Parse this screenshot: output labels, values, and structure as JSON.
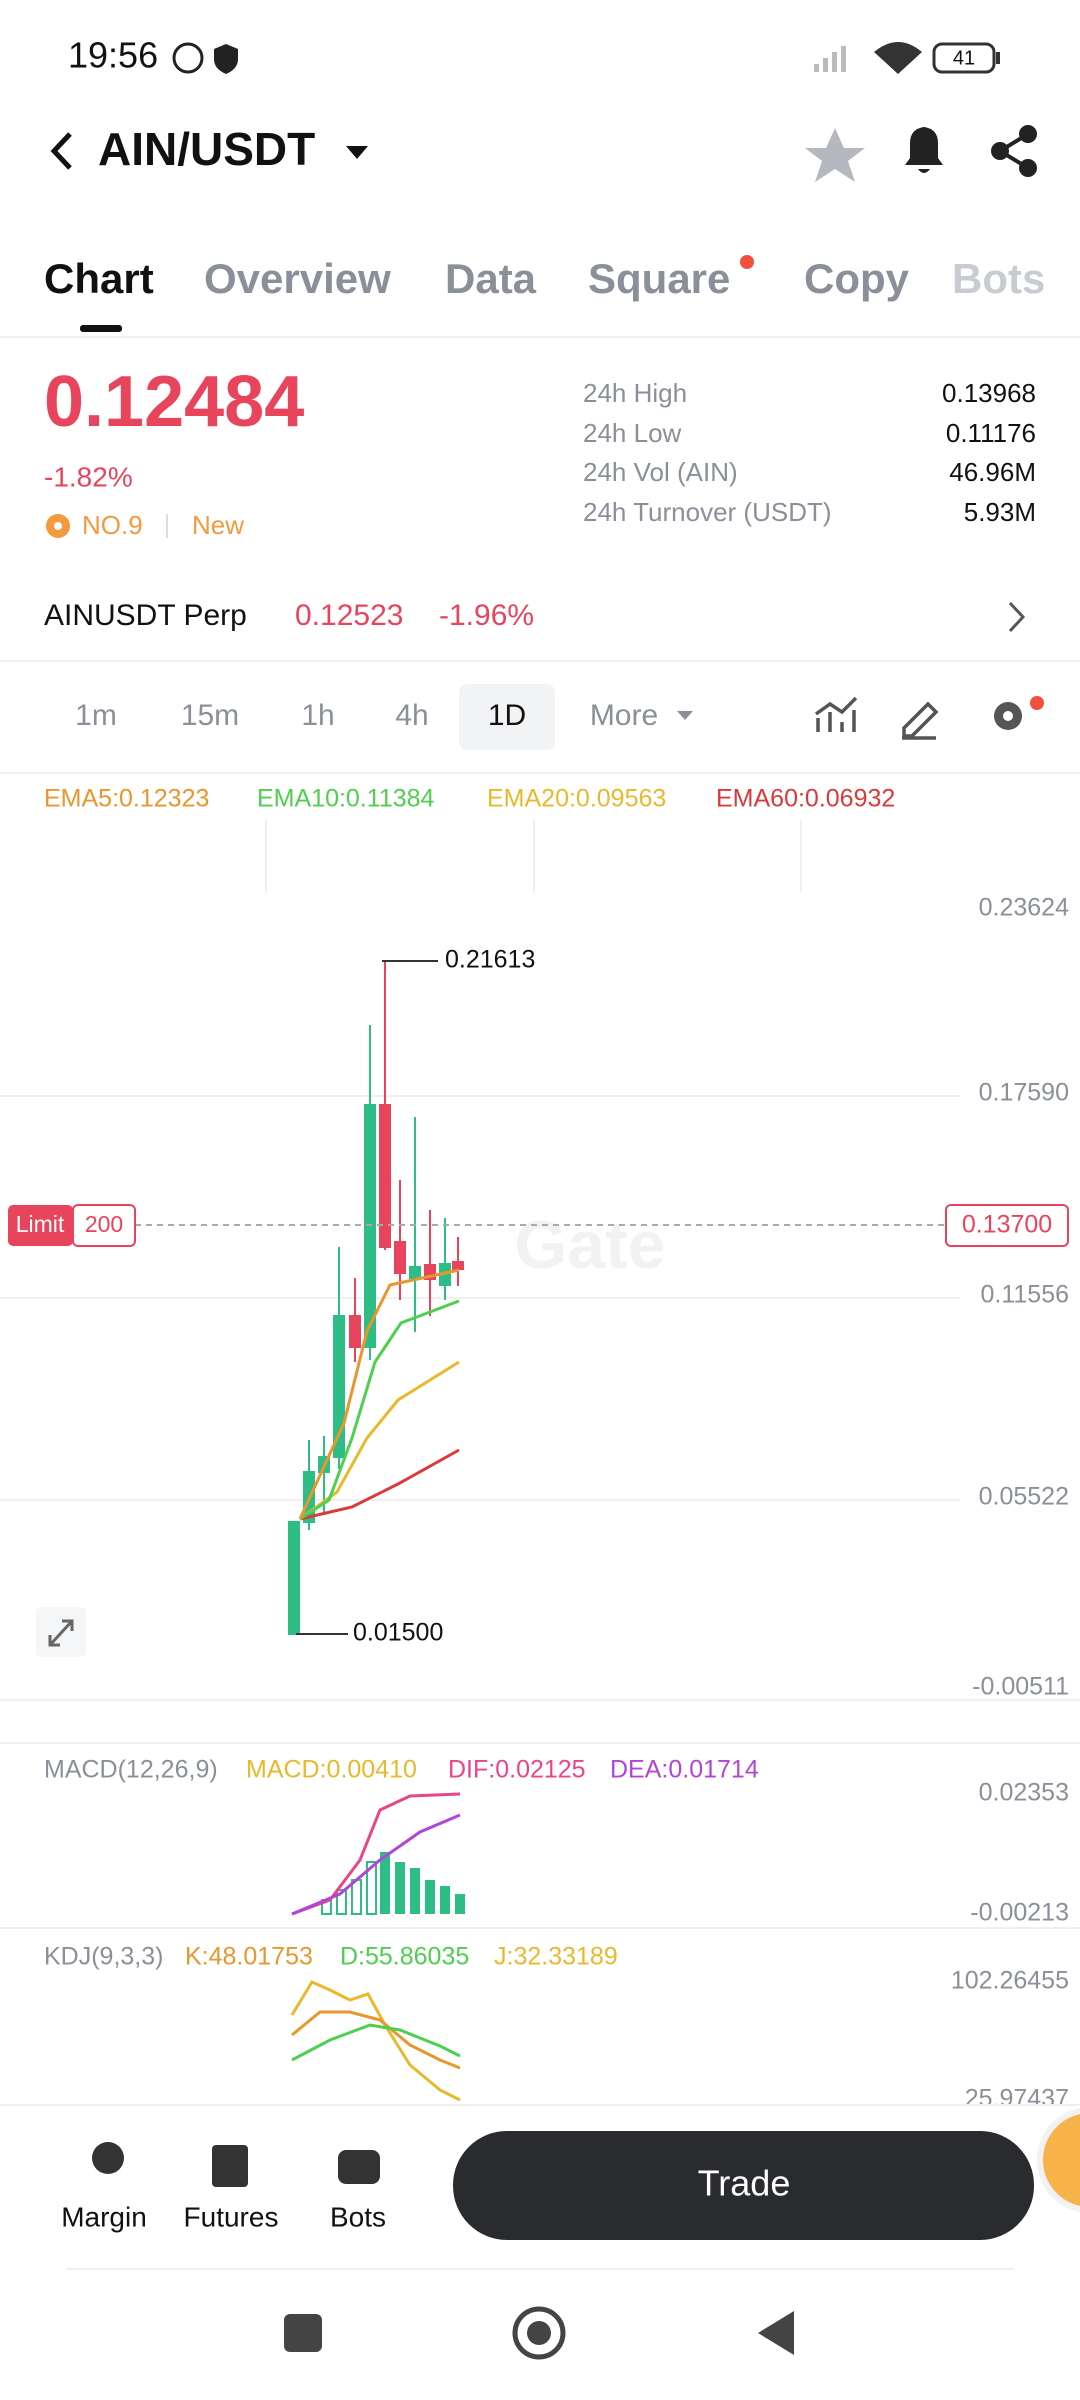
{
  "status_bar": {
    "time": "19:56",
    "battery": "41"
  },
  "header": {
    "pair": "AIN/USDT"
  },
  "tabs": [
    "Chart",
    "Overview",
    "Data",
    "Square",
    "Copy",
    "Bots"
  ],
  "price": {
    "last": "0.12484",
    "change": "-1.82%",
    "rank": "NO.9",
    "tag": "New"
  },
  "stats": [
    [
      "24h High",
      "0.13968"
    ],
    [
      "24h Low",
      "0.11176"
    ],
    [
      "24h Vol (AIN)",
      "46.96M"
    ],
    [
      "24h Turnover (USDT)",
      "5.93M"
    ]
  ],
  "perp": {
    "name": "AINUSDT Perp",
    "price": "0.12523",
    "change": "-1.96%"
  },
  "intervals": [
    "1m",
    "15m",
    "1h",
    "4h",
    "1D",
    "More"
  ],
  "ema": [
    "EMA5:0.12323",
    "EMA10:0.11384",
    "EMA20:0.09563",
    "EMA60:0.06932"
  ],
  "price_axis": [
    "0.23624",
    "0.17590",
    "0.11556",
    "0.05522",
    "-0.00511"
  ],
  "annotations": {
    "high": "0.21613",
    "low": "0.01500",
    "watermark": "Gate"
  },
  "limit": {
    "label": "Limit",
    "quantity": "200",
    "price": "0.13700"
  },
  "macd": {
    "title": "MACD(12,26,9)",
    "items": [
      "MACD:0.00410",
      "DIF:0.02125",
      "DEA:0.01714"
    ],
    "axis": [
      "0.02353",
      "-0.00213"
    ]
  },
  "kdj": {
    "title": "KDJ(9,3,3)",
    "items": [
      "K:48.01753",
      "D:55.86035",
      "J:32.33189"
    ],
    "axis": [
      "102.26455",
      "25.97437"
    ]
  },
  "bottom_nav": [
    "Margin",
    "Futures",
    "Bots"
  ],
  "trade": "Trade"
}
